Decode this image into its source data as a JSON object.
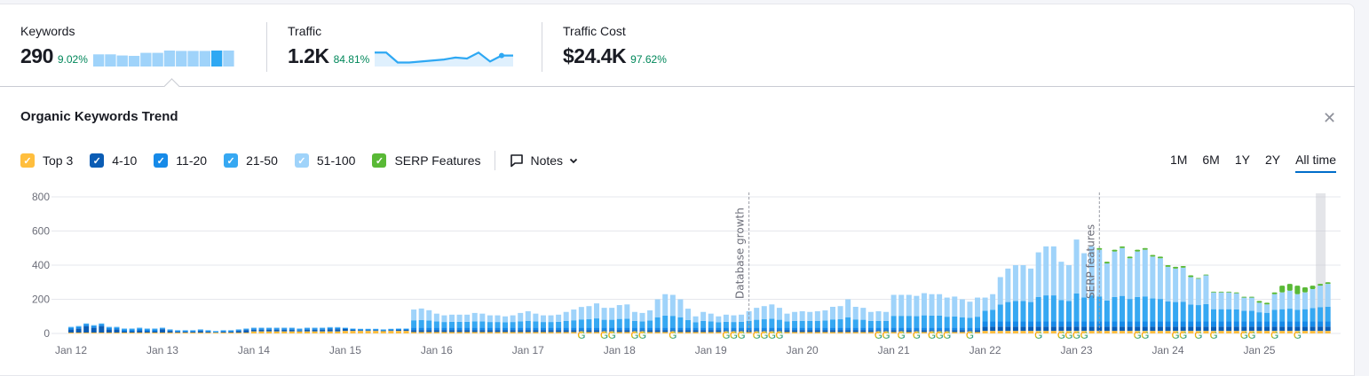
{
  "metrics": [
    {
      "label": "Keywords",
      "value": "290",
      "change": "9.02%",
      "sparkline": [
        240,
        240,
        225,
        220,
        260,
        260,
        290,
        285,
        285,
        285,
        290,
        290
      ],
      "highlight_index": 10
    },
    {
      "label": "Traffic",
      "value": "1.2K",
      "change": "84.81%",
      "sparkline": [
        1.5,
        1.5,
        1.0,
        1.0,
        1.05,
        1.1,
        1.15,
        1.25,
        1.2,
        1.5,
        1.05,
        1.35,
        1.35
      ]
    },
    {
      "label": "Traffic Cost",
      "value": "$24.4K",
      "change": "97.62%"
    }
  ],
  "panel": {
    "title": "Organic Keywords Trend",
    "close_icon": "close-icon"
  },
  "legend": [
    {
      "label": "Top 3",
      "color": "#ffbe3d"
    },
    {
      "label": "4-10",
      "color": "#0b5cb4"
    },
    {
      "label": "11-20",
      "color": "#168ae8"
    },
    {
      "label": "21-50",
      "color": "#36a8f2"
    },
    {
      "label": "51-100",
      "color": "#9fd3fa"
    },
    {
      "label": "SERP Features",
      "color": "#59b936"
    }
  ],
  "notes_label": "Notes",
  "ranges": [
    {
      "label": "1M"
    },
    {
      "label": "6M"
    },
    {
      "label": "1Y"
    },
    {
      "label": "2Y"
    },
    {
      "label": "All time",
      "active": true
    }
  ],
  "chart_data": {
    "type": "bar",
    "stacked": true,
    "ylim": [
      0,
      800
    ],
    "yticks": [
      "0",
      "200",
      "400",
      "600",
      "800"
    ],
    "xticks": [
      "Jan 12",
      "Jan 13",
      "Jan 14",
      "Jan 15",
      "Jan 16",
      "Jan 17",
      "Jan 18",
      "Jan 19",
      "Jan 20",
      "Jan 21",
      "Jan 22",
      "Jan 23",
      "Jan 24",
      "Jan 25"
    ],
    "grid": true,
    "annotations": [
      {
        "label": "Database growth",
        "month": "2019-06"
      },
      {
        "label": "SERP features",
        "month": "2023-04"
      }
    ],
    "google_updates": [
      "2017-08",
      "2017-11",
      "2017-12",
      "2018-03",
      "2018-04",
      "2018-08",
      "2019-03",
      "2019-04",
      "2019-05",
      "2019-07",
      "2019-08",
      "2019-09",
      "2019-10",
      "2020-11",
      "2020-12",
      "2021-02",
      "2021-04",
      "2021-06",
      "2021-07",
      "2021-08",
      "2021-11",
      "2022-08",
      "2022-11",
      "2022-12",
      "2023-01",
      "2023-02",
      "2023-09",
      "2023-10",
      "2024-02",
      "2024-03",
      "2024-05",
      "2024-07",
      "2024-11",
      "2024-12",
      "2025-03",
      "2025-06"
    ],
    "years": [
      {
        "year": "2012",
        "Top 3": [
          5,
          5,
          5,
          5,
          5,
          5,
          5,
          5,
          5,
          5,
          5,
          5
        ],
        "4-10": [
          18,
          23,
          38,
          28,
          38,
          18,
          18,
          8,
          8,
          13,
          8,
          8
        ],
        "11-20": [
          10,
          10,
          10,
          10,
          10,
          10,
          10,
          10,
          10,
          10,
          10,
          10
        ],
        "21-50": [
          5,
          5,
          5,
          5,
          5,
          5,
          5,
          5,
          5,
          5,
          5,
          5
        ],
        "51-100": [
          2,
          2,
          2,
          2,
          2,
          2,
          2,
          2,
          2,
          2,
          2,
          2
        ],
        "SERP Features": [
          0,
          0,
          0,
          0,
          0,
          0,
          0,
          0,
          0,
          0,
          0,
          0
        ]
      },
      {
        "year": "2013",
        "Top 3": [
          5,
          5,
          5,
          5,
          5,
          5,
          5,
          5,
          5,
          5,
          5,
          5
        ],
        "4-10": [
          20,
          10,
          5,
          5,
          5,
          10,
          5,
          0,
          5,
          5,
          10,
          15
        ],
        "11-20": [
          5,
          5,
          5,
          5,
          5,
          5,
          5,
          5,
          5,
          5,
          5,
          5
        ],
        "21-50": [
          3,
          3,
          3,
          3,
          3,
          3,
          3,
          3,
          3,
          3,
          3,
          3
        ],
        "51-100": [
          2,
          2,
          2,
          2,
          2,
          2,
          2,
          2,
          2,
          2,
          2,
          2
        ],
        "SERP Features": [
          0,
          0,
          0,
          0,
          0,
          0,
          0,
          0,
          0,
          0,
          0,
          0
        ]
      },
      {
        "year": "2014",
        "Top 3": [
          12,
          12,
          12,
          12,
          12,
          12,
          12,
          12,
          12,
          12,
          12,
          12
        ],
        "4-10": [
          10,
          10,
          10,
          10,
          10,
          10,
          5,
          10,
          10,
          10,
          13,
          13
        ],
        "11-20": [
          8,
          8,
          8,
          8,
          8,
          8,
          8,
          8,
          8,
          8,
          8,
          8
        ],
        "21-50": [
          3,
          3,
          3,
          3,
          3,
          3,
          3,
          3,
          3,
          3,
          3,
          3
        ],
        "51-100": [
          2,
          2,
          2,
          2,
          2,
          2,
          2,
          2,
          2,
          2,
          2,
          2
        ],
        "SERP Features": [
          0,
          0,
          0,
          0,
          0,
          0,
          0,
          0,
          0,
          0,
          0,
          0
        ]
      },
      {
        "year": "2015",
        "Top 3": [
          15,
          15,
          15,
          15,
          15,
          15,
          15,
          15,
          15,
          8,
          8,
          8
        ],
        "4-10": [
          11,
          6,
          4,
          4,
          4,
          1,
          4,
          6,
          6,
          12,
          12,
          12
        ],
        "11-20": [
          5,
          5,
          5,
          5,
          5,
          5,
          5,
          5,
          5,
          15,
          15,
          15
        ],
        "21-50": [
          2,
          2,
          2,
          2,
          2,
          2,
          2,
          2,
          2,
          42,
          44,
          41
        ],
        "51-100": [
          2,
          2,
          2,
          2,
          2,
          2,
          2,
          2,
          2,
          63,
          67,
          60
        ],
        "SERP Features": [
          0,
          0,
          0,
          0,
          0,
          0,
          0,
          0,
          0,
          0,
          0,
          0
        ]
      },
      {
        "year": "2016",
        "Top 3": [
          8,
          8,
          8,
          8,
          8,
          8,
          8,
          8,
          8,
          8,
          8,
          8
        ],
        "4-10": [
          12,
          12,
          12,
          12,
          12,
          12,
          12,
          12,
          12,
          12,
          12,
          12
        ],
        "11-20": [
          15,
          15,
          15,
          15,
          15,
          15,
          15,
          15,
          15,
          15,
          15,
          15
        ],
        "21-50": [
          35,
          32,
          33,
          33,
          33,
          36,
          35,
          32,
          32,
          30,
          32,
          36
        ],
        "51-100": [
          46,
          39,
          42,
          42,
          42,
          49,
          46,
          39,
          39,
          35,
          39,
          49
        ],
        "SERP Features": [
          0,
          0,
          0,
          0,
          0,
          0,
          0,
          0,
          0,
          0,
          0,
          0
        ]
      },
      {
        "year": "2017",
        "Top 3": [
          8,
          8,
          8,
          8,
          8,
          8,
          8,
          8,
          8,
          8,
          8,
          8
        ],
        "4-10": [
          12,
          12,
          12,
          12,
          12,
          12,
          12,
          12,
          12,
          12,
          12,
          12
        ],
        "11-20": [
          15,
          15,
          15,
          15,
          15,
          15,
          15,
          15,
          15,
          15,
          15,
          15
        ],
        "21-50": [
          39,
          35,
          32,
          32,
          33,
          38,
          42,
          47,
          48,
          53,
          45,
          45
        ],
        "51-100": [
          56,
          46,
          39,
          39,
          42,
          53,
          63,
          73,
          77,
          88,
          70,
          70
        ],
        "SERP Features": [
          0,
          0,
          0,
          0,
          0,
          0,
          0,
          0,
          0,
          0,
          0,
          0
        ]
      },
      {
        "year": "2018",
        "Top 3": [
          8,
          8,
          8,
          8,
          8,
          8,
          8,
          8,
          8,
          8,
          8,
          8
        ],
        "4-10": [
          12,
          12,
          12,
          12,
          12,
          12,
          12,
          12,
          12,
          12,
          12,
          12
        ],
        "11-20": [
          15,
          15,
          15,
          15,
          15,
          15,
          15,
          15,
          15,
          15,
          15,
          15
        ],
        "21-50": [
          50,
          51,
          38,
          36,
          41,
          60,
          69,
          68,
          60,
          44,
          30,
          38
        ],
        "51-100": [
          81,
          84,
          53,
          49,
          59,
          105,
          126,
          123,
          105,
          66,
          35,
          53
        ],
        "SERP Features": [
          0,
          0,
          0,
          0,
          0,
          0,
          0,
          0,
          0,
          0,
          0,
          0
        ]
      },
      {
        "year": "2019",
        "Top 3": [
          8,
          8,
          8,
          8,
          8,
          8,
          8,
          8,
          8,
          8,
          8,
          8
        ],
        "4-10": [
          12,
          12,
          12,
          12,
          12,
          12,
          12,
          12,
          12,
          12,
          12,
          12
        ],
        "11-20": [
          15,
          15,
          15,
          15,
          15,
          15,
          15,
          15,
          15,
          15,
          15,
          15
        ],
        "21-50": [
          35,
          30,
          33,
          32,
          33,
          39,
          45,
          48,
          51,
          45,
          35,
          38
        ],
        "51-100": [
          46,
          35,
          42,
          39,
          42,
          56,
          70,
          77,
          84,
          70,
          46,
          53
        ],
        "SERP Features": [
          0,
          0,
          0,
          0,
          0,
          0,
          0,
          0,
          0,
          0,
          0,
          0
        ]
      },
      {
        "year": "2020",
        "Top 3": [
          8,
          8,
          8,
          8,
          8,
          8,
          8,
          8,
          8,
          8,
          8,
          8
        ],
        "4-10": [
          12,
          12,
          12,
          12,
          12,
          12,
          12,
          12,
          12,
          12,
          12,
          12
        ],
        "11-20": [
          15,
          15,
          15,
          15,
          15,
          15,
          15,
          15,
          15,
          15,
          15,
          15
        ],
        "21-50": [
          39,
          38,
          39,
          41,
          47,
          48,
          60,
          47,
          45,
          38,
          39,
          38
        ],
        "51-100": [
          56,
          53,
          56,
          59,
          74,
          77,
          105,
          74,
          70,
          53,
          56,
          53
        ],
        "SERP Features": [
          0,
          0,
          0,
          0,
          0,
          0,
          0,
          0,
          0,
          0,
          0,
          0
        ]
      },
      {
        "year": "2021",
        "Top 3": [
          8,
          8,
          8,
          8,
          8,
          8,
          8,
          8,
          8,
          8,
          8,
          8
        ],
        "4-10": [
          12,
          12,
          12,
          12,
          12,
          12,
          12,
          12,
          12,
          12,
          12,
          12
        ],
        "11-20": [
          15,
          15,
          15,
          15,
          15,
          15,
          15,
          15,
          15,
          15,
          15,
          15
        ],
        "21-50": [
          68,
          68,
          68,
          66,
          71,
          69,
          69,
          63,
          65,
          60,
          56,
          63
        ],
        "51-100": [
          123,
          123,
          123,
          119,
          130,
          126,
          126,
          112,
          116,
          105,
          95,
          112
        ],
        "SERP Features": [
          0,
          0,
          0,
          0,
          0,
          0,
          0,
          0,
          0,
          0,
          0,
          0
        ]
      },
      {
        "year": "2022",
        "Top 3": [
          15,
          15,
          15,
          15,
          15,
          15,
          15,
          15,
          15,
          15,
          15,
          15
        ],
        "4-10": [
          25,
          25,
          25,
          25,
          25,
          25,
          25,
          25,
          25,
          25,
          25,
          25
        ],
        "11-20": [
          30,
          30,
          30,
          30,
          30,
          30,
          30,
          30,
          30,
          30,
          30,
          30
        ],
        "21-50": [
          63,
          69,
          99,
          114,
          120,
          120,
          114,
          143,
          153,
          153,
          126,
          120
        ],
        "51-100": [
          77,
          91,
          161,
          196,
          210,
          210,
          196,
          262,
          287,
          287,
          224,
          210
        ],
        "SERP Features": [
          0,
          0,
          0,
          0,
          0,
          0,
          0,
          0,
          0,
          0,
          0,
          0
        ]
      },
      {
        "year": "2023",
        "Top 3": [
          15,
          15,
          15,
          15,
          15,
          15,
          15,
          15,
          15,
          15,
          15,
          15
        ],
        "4-10": [
          25,
          25,
          25,
          25,
          25,
          25,
          25,
          25,
          25,
          25,
          25,
          25
        ],
        "11-20": [
          30,
          30,
          30,
          30,
          30,
          30,
          30,
          30,
          30,
          30,
          30,
          30
        ],
        "21-50": [
          165,
          141,
          153,
          147,
          123,
          144,
          150,
          132,
          144,
          147,
          135,
          132
        ],
        "51-100": [
          315,
          259,
          287,
          273,
          217,
          266,
          280,
          238,
          266,
          273,
          245,
          238
        ],
        "SERP Features": [
          0,
          0,
          0,
          10,
          10,
          10,
          10,
          10,
          10,
          10,
          10,
          10
        ]
      },
      {
        "year": "2024",
        "Top 3": [
          15,
          15,
          15,
          15,
          15,
          15,
          15,
          15,
          15,
          15,
          15,
          15
        ],
        "4-10": [
          25,
          25,
          25,
          25,
          25,
          25,
          25,
          25,
          25,
          25,
          25,
          25
        ],
        "11-20": [
          30,
          30,
          30,
          30,
          30,
          30,
          30,
          30,
          30,
          30,
          30,
          30
        ],
        "21-50": [
          117,
          114,
          116,
          99,
          96,
          102,
          72,
          72,
          72,
          71,
          63,
          63
        ],
        "51-100": [
          203,
          196,
          199,
          161,
          154,
          168,
          98,
          98,
          98,
          94,
          77,
          77
        ],
        "SERP Features": [
          10,
          10,
          10,
          10,
          5,
          5,
          5,
          5,
          5,
          5,
          5,
          5
        ]
      },
      {
        "year": "2025",
        "Top 3": [
          15,
          15,
          15,
          15,
          15,
          15,
          15,
          15,
          15,
          15
        ],
        "4-10": [
          25,
          25,
          25,
          25,
          25,
          25,
          25,
          25,
          25,
          25
        ],
        "11-20": [
          30,
          30,
          30,
          30,
          30,
          30,
          30,
          30,
          30,
          30
        ],
        "21-50": [
          54,
          51,
          69,
          72,
          75,
          69,
          72,
          78,
          84,
          87
        ],
        "51-100": [
          56,
          49,
          91,
          98,
          105,
          91,
          98,
          112,
          126,
          133
        ],
        "SERP Features": [
          10,
          10,
          10,
          40,
          40,
          50,
          30,
          20,
          10,
          10
        ]
      }
    ]
  }
}
